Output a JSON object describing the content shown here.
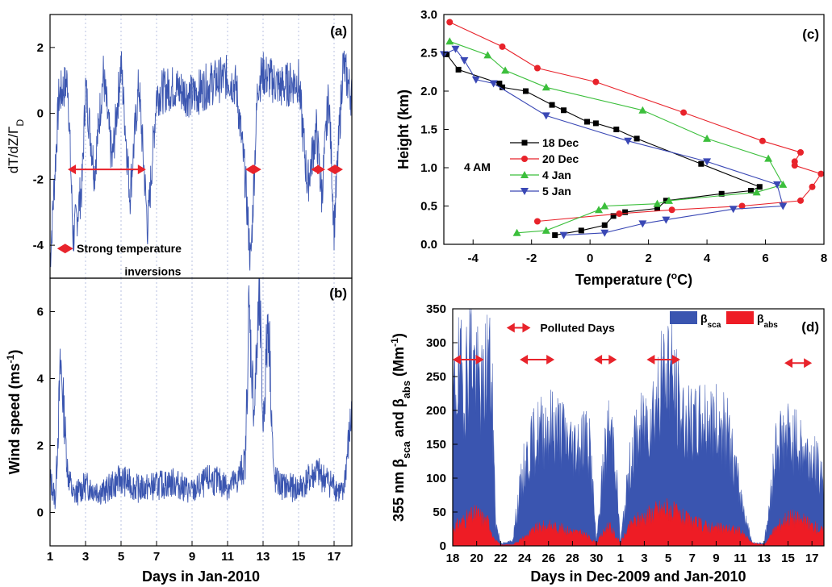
{
  "chart_data": [
    {
      "id": "a",
      "type": "line",
      "panel_label": "(a)",
      "ylabel": "dT/dZ/Γ",
      "ylabel_sub": "D",
      "xlim": [
        1,
        18
      ],
      "ylim": [
        -5,
        3
      ],
      "yticks": [
        -4,
        -2,
        0,
        2
      ],
      "color": "#3a55b0",
      "series": [
        {
          "x": [
            1,
            1.5,
            2,
            2.3,
            2.8,
            3,
            3.5,
            4,
            4.5,
            5,
            5.5,
            6,
            6.5,
            7,
            8,
            9,
            10,
            11,
            11.5,
            12,
            12.3,
            12.7,
            13,
            14,
            15,
            15.5,
            16,
            16.3,
            16.7,
            17,
            17.5,
            18
          ],
          "y": [
            -4.5,
            0.5,
            1.0,
            -3.8,
            -2.2,
            0.8,
            -1.8,
            1.2,
            -1.5,
            1.5,
            -2.5,
            0.9,
            -3.5,
            0.6,
            0.8,
            0.5,
            0.9,
            1.1,
            0.8,
            -2.0,
            -4.6,
            0.9,
            1.2,
            0.8,
            1.0,
            -2.2,
            -0.5,
            -2.5,
            0.6,
            -3.5,
            1.5,
            0.5
          ]
        }
      ],
      "annotations": [
        "Strong temperature",
        "inversions"
      ]
    },
    {
      "id": "b",
      "type": "line",
      "panel_label": "(b)",
      "ylabel": "Wind speed (ms",
      "ylabel_sup": "-1",
      "ylabel_end": ")",
      "xlabel": "Days in Jan-2010",
      "xlim": [
        1,
        18
      ],
      "ylim": [
        -1,
        7
      ],
      "yticks": [
        0,
        2,
        4,
        6
      ],
      "xticks": [
        1,
        3,
        5,
        7,
        9,
        11,
        13,
        15,
        17
      ],
      "color": "#3a55b0",
      "series": [
        {
          "x": [
            1,
            1.3,
            1.6,
            2,
            2.3,
            3,
            4,
            5,
            6,
            7,
            8,
            9,
            10,
            11,
            11.5,
            12,
            12.2,
            12.5,
            12.8,
            13,
            13.3,
            13.6,
            14,
            15,
            16,
            17,
            17.5,
            18
          ],
          "y": [
            1.0,
            0.4,
            4.5,
            1.2,
            0.5,
            0.8,
            0.6,
            1.0,
            0.7,
            0.8,
            0.9,
            0.6,
            1.0,
            0.8,
            0.9,
            1.5,
            6.0,
            3.0,
            6.5,
            2.5,
            6.0,
            1.0,
            0.8,
            0.7,
            1.2,
            0.8,
            0.5,
            3.0
          ]
        }
      ]
    },
    {
      "id": "c",
      "type": "line",
      "panel_label": "(c)",
      "xlabel": "Temperature (",
      "xlabel_sup": "o",
      "xlabel_end": "C)",
      "ylabel": "Height (km)",
      "xlim": [
        -5,
        8
      ],
      "ylim": [
        0,
        3.0
      ],
      "xticks": [
        -4,
        -2,
        0,
        2,
        4,
        6,
        8
      ],
      "yticks": [
        0.0,
        0.5,
        1.0,
        1.5,
        2.0,
        2.5,
        3.0
      ],
      "annotation": "4 AM",
      "legend_position": "center-left",
      "series": [
        {
          "name": "18 Dec",
          "color": "#000000",
          "marker": "square",
          "x": [
            -1.2,
            -0.3,
            0.5,
            0.8,
            1.2,
            2.3,
            2.6,
            4.5,
            5.5,
            5.8,
            3.8,
            1.6,
            0.9,
            0.2,
            -0.1,
            -0.9,
            -1.3,
            -2.2,
            -3.0,
            -3.1,
            -4.5,
            -4.9
          ],
          "y": [
            0.12,
            0.18,
            0.25,
            0.37,
            0.42,
            0.47,
            0.57,
            0.66,
            0.7,
            0.75,
            1.05,
            1.38,
            1.5,
            1.58,
            1.6,
            1.75,
            1.82,
            2.0,
            2.05,
            2.1,
            2.28,
            2.48
          ]
        },
        {
          "name": "20 Dec",
          "color": "#e8232b",
          "marker": "circle",
          "x": [
            -1.8,
            1.0,
            2.8,
            5.2,
            7.2,
            7.6,
            7.9,
            7.0,
            7.0,
            7.2,
            5.9,
            3.2,
            0.2,
            -1.8,
            -3.0,
            -4.8
          ],
          "y": [
            0.3,
            0.4,
            0.45,
            0.5,
            0.57,
            0.75,
            0.92,
            1.03,
            1.08,
            1.2,
            1.35,
            1.72,
            2.12,
            2.3,
            2.58,
            2.9
          ]
        },
        {
          "name": "4 Jan",
          "color": "#3cbf3c",
          "marker": "triangle-up",
          "x": [
            -2.5,
            -1.5,
            0.3,
            0.5,
            2.3,
            2.7,
            5.7,
            6.6,
            6.1,
            4.0,
            1.8,
            -1.5,
            -2.9,
            -3.5,
            -4.8
          ],
          "y": [
            0.15,
            0.18,
            0.45,
            0.5,
            0.53,
            0.57,
            0.68,
            0.78,
            1.12,
            1.38,
            1.75,
            2.05,
            2.27,
            2.47,
            2.65
          ]
        },
        {
          "name": "5 Jan",
          "color": "#3a48b5",
          "marker": "triangle-down",
          "x": [
            -0.9,
            0.5,
            1.8,
            2.6,
            4.9,
            6.6,
            6.4,
            4.0,
            1.3,
            -1.5,
            -3.3,
            -3.9,
            -4.3,
            -4.6,
            -5.0
          ],
          "y": [
            0.12,
            0.15,
            0.27,
            0.32,
            0.46,
            0.5,
            0.78,
            1.08,
            1.35,
            1.68,
            2.1,
            2.15,
            2.4,
            2.55,
            2.48
          ]
        }
      ]
    },
    {
      "id": "d",
      "type": "area",
      "panel_label": "(d)",
      "xlabel": "Days in Dec-2009 and Jan-2010",
      "ylabel_parts": [
        "355 nm β",
        "sca",
        " and β",
        "abs",
        " (Mm",
        "-1",
        ")"
      ],
      "ylim": [
        0,
        350
      ],
      "yticks": [
        0,
        50,
        100,
        150,
        200,
        250,
        300,
        350
      ],
      "xticks": [
        "18",
        "20",
        "22",
        "24",
        "26",
        "28",
        "30",
        "1",
        "3",
        "5",
        "7",
        "9",
        "11",
        "13",
        "15",
        "17"
      ],
      "xlim": [
        0,
        31
      ],
      "annotation": "Polluted Days",
      "series": [
        {
          "name": "β",
          "name_sub": "sca",
          "color": "#3a55b0",
          "x": [
            0,
            0.5,
            1,
            1.5,
            2,
            2.5,
            3,
            3.3,
            3.6,
            4,
            4.5,
            5,
            5.5,
            6,
            7,
            8,
            9,
            10,
            11,
            11.5,
            12,
            12.5,
            13,
            13.5,
            14,
            15,
            16,
            17,
            18,
            19,
            20,
            21,
            22,
            23,
            24,
            25,
            25.5,
            26,
            26.5,
            27,
            28,
            29,
            30,
            31
          ],
          "y": [
            250,
            300,
            280,
            350,
            290,
            260,
            340,
            250,
            40,
            5,
            5,
            10,
            80,
            140,
            190,
            210,
            200,
            170,
            190,
            160,
            5,
            120,
            200,
            180,
            5,
            170,
            210,
            250,
            320,
            230,
            200,
            220,
            210,
            190,
            90,
            5,
            5,
            5,
            70,
            180,
            190,
            170,
            150,
            120
          ]
        },
        {
          "name": "β",
          "name_sub": "abs",
          "color": "#ee1c25",
          "x": [
            0,
            1,
            2,
            3,
            3.5,
            4,
            5,
            6,
            7,
            8,
            9,
            10,
            11,
            12,
            13,
            14,
            15,
            16,
            17,
            18,
            19,
            20,
            21,
            22,
            23,
            24,
            25,
            26,
            27,
            28,
            29,
            30,
            31
          ],
          "y": [
            30,
            45,
            55,
            40,
            10,
            2,
            2,
            15,
            30,
            35,
            30,
            25,
            20,
            5,
            35,
            5,
            40,
            50,
            60,
            65,
            50,
            40,
            35,
            30,
            30,
            25,
            5,
            2,
            30,
            50,
            45,
            35,
            25
          ]
        }
      ]
    }
  ]
}
